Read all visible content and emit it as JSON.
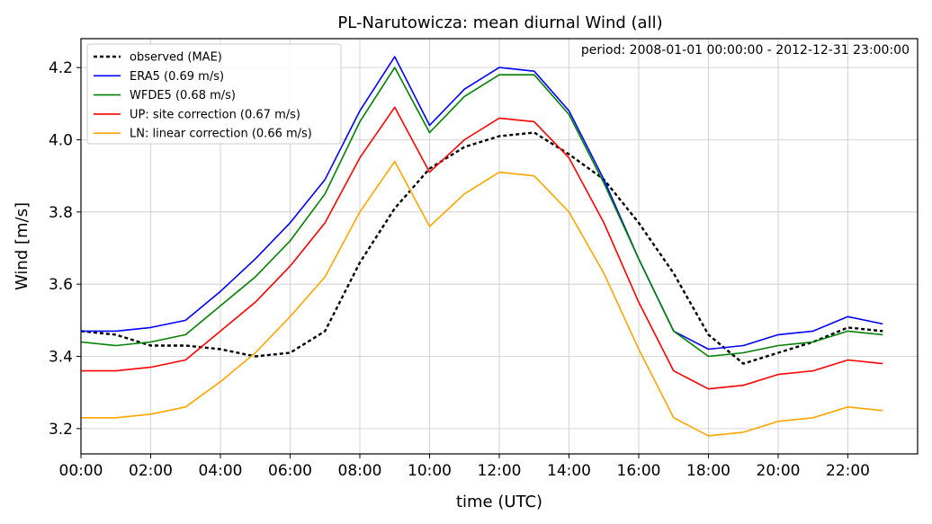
{
  "chart_data": {
    "type": "line",
    "title": "PL-Narutowicza: mean diurnal Wind (all)",
    "annotation": "period: 2008-01-01 00:00:00 - 2012-12-31 23:00:00",
    "xlabel": "time (UTC)",
    "ylabel": "Wind [m/s]",
    "xlim": [
      0,
      24
    ],
    "ylim": [
      3.13,
      4.28
    ],
    "x": [
      0,
      1,
      2,
      3,
      4,
      5,
      6,
      7,
      8,
      9,
      10,
      11,
      12,
      13,
      14,
      15,
      16,
      17,
      18,
      19,
      20,
      21,
      22,
      23
    ],
    "x_ticks": [
      0,
      2,
      4,
      6,
      8,
      10,
      12,
      14,
      16,
      18,
      20,
      22
    ],
    "x_tick_labels": [
      "00:00",
      "02:00",
      "04:00",
      "06:00",
      "08:00",
      "10:00",
      "12:00",
      "14:00",
      "16:00",
      "18:00",
      "20:00",
      "22:00"
    ],
    "y_ticks": [
      3.2,
      3.4,
      3.6,
      3.8,
      4.0,
      4.2
    ],
    "y_tick_labels": [
      "3.2",
      "3.4",
      "3.6",
      "3.8",
      "4.0",
      "4.2"
    ],
    "grid": true,
    "legend_position": "top-left",
    "series": [
      {
        "name": "observed (MAE)",
        "color": "#000000",
        "dashed": true,
        "values": [
          3.47,
          3.46,
          3.43,
          3.43,
          3.42,
          3.4,
          3.41,
          3.47,
          3.66,
          3.81,
          3.92,
          3.98,
          4.01,
          4.02,
          3.96,
          3.89,
          3.77,
          3.63,
          3.46,
          3.38,
          3.41,
          3.44,
          3.48,
          3.47
        ]
      },
      {
        "name": "ERA5 (0.69 m/s)",
        "color": "#0000ff",
        "dashed": false,
        "values": [
          3.47,
          3.47,
          3.48,
          3.5,
          3.58,
          3.67,
          3.77,
          3.89,
          4.08,
          4.23,
          4.04,
          4.14,
          4.2,
          4.19,
          4.08,
          3.89,
          3.67,
          3.47,
          3.42,
          3.43,
          3.46,
          3.47,
          3.51,
          3.49
        ]
      },
      {
        "name": "WFDE5 (0.68 m/s)",
        "color": "#008000",
        "dashed": false,
        "values": [
          3.44,
          3.43,
          3.44,
          3.46,
          3.54,
          3.62,
          3.72,
          3.85,
          4.05,
          4.2,
          4.02,
          4.12,
          4.18,
          4.18,
          4.07,
          3.88,
          3.67,
          3.47,
          3.4,
          3.41,
          3.43,
          3.44,
          3.47,
          3.46
        ]
      },
      {
        "name": "UP: site correction (0.67 m/s)",
        "color": "#ff0000",
        "dashed": false,
        "values": [
          3.36,
          3.36,
          3.37,
          3.39,
          3.47,
          3.55,
          3.65,
          3.77,
          3.95,
          4.09,
          3.91,
          4.0,
          4.06,
          4.05,
          3.95,
          3.77,
          3.55,
          3.36,
          3.31,
          3.32,
          3.35,
          3.36,
          3.39,
          3.38
        ]
      },
      {
        "name": "LN: linear correction (0.66 m/s)",
        "color": "#ffa500",
        "dashed": false,
        "values": [
          3.23,
          3.23,
          3.24,
          3.26,
          3.33,
          3.41,
          3.51,
          3.62,
          3.8,
          3.94,
          3.76,
          3.85,
          3.91,
          3.9,
          3.8,
          3.63,
          3.42,
          3.23,
          3.18,
          3.19,
          3.22,
          3.23,
          3.26,
          3.25
        ]
      }
    ]
  }
}
